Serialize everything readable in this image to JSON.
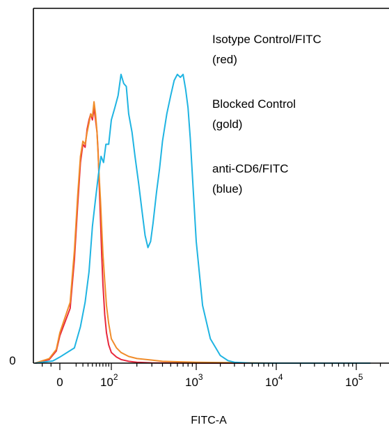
{
  "chart_data": {
    "type": "line",
    "title": "",
    "xlabel": "FITC-A",
    "ylabel": "",
    "x_scale": "biexponential",
    "x_ticks": [
      {
        "value": 0,
        "base": "0",
        "exp": ""
      },
      {
        "value": 100,
        "base": "10",
        "exp": "2"
      },
      {
        "value": 1000,
        "base": "10",
        "exp": "3"
      },
      {
        "value": 10000,
        "base": "10",
        "exp": "4"
      },
      {
        "value": 100000,
        "base": "10",
        "exp": "5"
      }
    ],
    "y_ticks": [
      {
        "value": 0,
        "label": "0"
      }
    ],
    "xlim": [
      -30,
      150000
    ],
    "ylim": [
      0,
      100
    ],
    "grid": false,
    "legend_position": "top-right",
    "legend": [
      {
        "line1": "Isotype Control/FITC",
        "line2": "(red)"
      },
      {
        "line1": "Blocked Control",
        "line2": "(gold)"
      },
      {
        "line1": "anti-CD6/FITC",
        "line2": "(blue)"
      }
    ],
    "series": [
      {
        "color": "#e8283c",
        "x": [
          -28,
          -12,
          -4,
          0,
          4,
          8,
          12,
          16,
          20,
          24,
          28,
          32,
          36,
          40,
          44,
          48,
          52,
          55,
          58,
          62,
          66,
          70,
          76,
          82,
          90,
          100,
          115,
          130,
          160,
          200,
          300,
          1000,
          10000,
          150000
        ],
        "y": [
          0,
          1.2,
          4,
          9,
          18,
          34,
          52,
          66,
          72,
          71,
          77,
          80,
          82,
          80,
          84,
          80,
          76,
          70,
          60,
          48,
          36,
          26,
          16,
          10,
          6,
          3.5,
          2,
          1.2,
          0.6,
          0.3,
          0.1,
          0,
          0,
          0
        ]
      },
      {
        "color": "#f08c2a",
        "x": [
          -28,
          -12,
          -4,
          0,
          4,
          8,
          12,
          16,
          20,
          24,
          28,
          32,
          36,
          40,
          44,
          48,
          52,
          55,
          58,
          62,
          66,
          70,
          76,
          82,
          90,
          100,
          115,
          130,
          160,
          200,
          300,
          400,
          1000,
          10000,
          150000
        ],
        "y": [
          0,
          1.5,
          4.5,
          10,
          20,
          37,
          55,
          68,
          73,
          72,
          76,
          79,
          82,
          81,
          86,
          82,
          76,
          69,
          62,
          54,
          45,
          36,
          27,
          19,
          13,
          8,
          5,
          3.5,
          2.2,
          1.5,
          1,
          0.6,
          0.3,
          0,
          0
        ]
      },
      {
        "color": "#1fb4e2",
        "x": [
          -28,
          -8,
          0,
          8,
          16,
          24,
          32,
          40,
          48,
          56,
          64,
          72,
          80,
          90,
          100,
          110,
          120,
          130,
          140,
          150,
          160,
          175,
          190,
          210,
          230,
          250,
          270,
          290,
          310,
          340,
          370,
          400,
          450,
          500,
          550,
          600,
          650,
          700,
          750,
          800,
          850,
          900,
          1000,
          1200,
          1500,
          2000,
          2500,
          3000,
          5000,
          10000,
          150000
        ],
        "y": [
          0,
          0.7,
          2,
          5,
          12,
          20,
          30,
          45,
          54,
          62,
          68,
          66,
          72,
          72,
          80,
          84,
          88,
          95,
          92,
          91,
          82,
          76,
          68,
          59,
          50,
          42,
          38,
          40,
          46,
          56,
          64,
          73,
          82,
          88,
          93,
          95,
          94,
          95,
          90,
          84,
          74,
          62,
          40,
          19,
          8,
          2.5,
          0.8,
          0.3,
          0,
          0,
          0
        ]
      }
    ]
  }
}
